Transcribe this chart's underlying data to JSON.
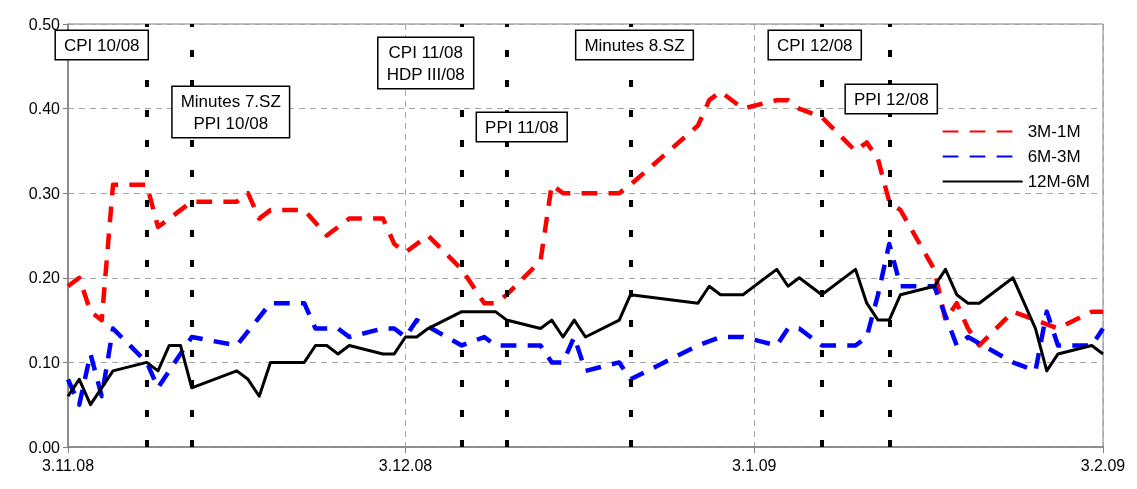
{
  "chart_data": {
    "type": "line",
    "xlim": [
      "2008-11-03",
      "2009-02-03"
    ],
    "xticks": [
      {
        "value": "2008-11-03",
        "label": "3.11.08"
      },
      {
        "value": "2008-12-03",
        "label": "3.12.08"
      },
      {
        "value": "2009-01-03",
        "label": "3.1.09"
      },
      {
        "value": "2009-02-03",
        "label": "3.2.09"
      }
    ],
    "ylim": [
      0,
      0.5
    ],
    "yticks": [
      {
        "value": 0,
        "label": "0.00"
      },
      {
        "value": 0.1,
        "label": "0.10"
      },
      {
        "value": 0.2,
        "label": "0.20"
      },
      {
        "value": 0.3,
        "label": "0.30"
      },
      {
        "value": 0.4,
        "label": "0.40"
      },
      {
        "value": 0.5,
        "label": "0.50"
      }
    ],
    "grid": true,
    "legend": "top right",
    "marker": "none",
    "series": [
      {
        "name": "3M-1M",
        "color": "#ff0000",
        "line_style": "dashed",
        "x": [
          "2008-11-03",
          "2008-11-04",
          "2008-11-05",
          "2008-11-06",
          "2008-11-07",
          "2008-11-10",
          "2008-11-11",
          "2008-11-14",
          "2008-11-18",
          "2008-11-19",
          "2008-11-20",
          "2008-11-21",
          "2008-11-24",
          "2008-11-26",
          "2008-11-27",
          "2008-11-28",
          "2008-12-01",
          "2008-12-02",
          "2008-12-03",
          "2008-12-05",
          "2008-12-08",
          "2008-12-10",
          "2008-12-11",
          "2008-12-12",
          "2008-12-15",
          "2008-12-16",
          "2008-12-17",
          "2008-12-18",
          "2008-12-19",
          "2008-12-22",
          "2008-12-23",
          "2008-12-29",
          "2008-12-30",
          "2008-12-31",
          "2009-01-02",
          "2009-01-05",
          "2009-01-06",
          "2009-01-07",
          "2009-01-09",
          "2009-01-12",
          "2009-01-13",
          "2009-01-14",
          "2009-01-15",
          "2009-01-16",
          "2009-01-19",
          "2009-01-20",
          "2009-01-21",
          "2009-01-22",
          "2009-01-23",
          "2009-01-26",
          "2009-01-28",
          "2009-01-30",
          "2009-02-02",
          "2009-02-03"
        ],
        "values": [
          0.19,
          0.2,
          0.16,
          0.15,
          0.31,
          0.31,
          0.26,
          0.29,
          0.29,
          0.3,
          0.27,
          0.28,
          0.28,
          0.25,
          0.26,
          0.27,
          0.27,
          0.24,
          0.23,
          0.25,
          0.21,
          0.17,
          0.17,
          0.18,
          0.22,
          0.31,
          0.3,
          0.3,
          0.3,
          0.3,
          0.31,
          0.38,
          0.41,
          0.42,
          0.4,
          0.41,
          0.41,
          0.4,
          0.39,
          0.35,
          0.36,
          0.34,
          0.29,
          0.28,
          0.21,
          0.15,
          0.17,
          0.14,
          0.12,
          0.16,
          0.15,
          0.14,
          0.16,
          0.16
        ]
      },
      {
        "name": "6M-3M",
        "color": "#0000ff",
        "line_style": "dashed",
        "x": [
          "2008-11-03",
          "2008-11-04",
          "2008-11-05",
          "2008-11-06",
          "2008-11-07",
          "2008-11-10",
          "2008-11-11",
          "2008-11-14",
          "2008-11-18",
          "2008-11-21",
          "2008-11-24",
          "2008-11-25",
          "2008-11-26",
          "2008-11-27",
          "2008-11-28",
          "2008-12-01",
          "2008-12-02",
          "2008-12-03",
          "2008-12-04",
          "2008-12-08",
          "2008-12-10",
          "2008-12-11",
          "2008-12-15",
          "2008-12-16",
          "2008-12-17",
          "2008-12-18",
          "2008-12-19",
          "2008-12-22",
          "2008-12-23",
          "2008-12-29",
          "2008-12-31",
          "2009-01-02",
          "2009-01-05",
          "2009-01-06",
          "2009-01-07",
          "2009-01-09",
          "2009-01-12",
          "2009-01-13",
          "2009-01-14",
          "2009-01-15",
          "2009-01-16",
          "2009-01-19",
          "2009-01-21",
          "2009-01-22",
          "2009-01-26",
          "2009-01-28",
          "2009-01-29",
          "2009-01-30",
          "2009-02-02",
          "2009-02-03"
        ],
        "values": [
          0.08,
          0.05,
          0.11,
          0.06,
          0.14,
          0.1,
          0.07,
          0.13,
          0.12,
          0.17,
          0.17,
          0.14,
          0.14,
          0.14,
          0.13,
          0.14,
          0.14,
          0.13,
          0.15,
          0.12,
          0.13,
          0.12,
          0.12,
          0.1,
          0.1,
          0.13,
          0.09,
          0.1,
          0.08,
          0.12,
          0.13,
          0.13,
          0.12,
          0.14,
          0.14,
          0.12,
          0.12,
          0.13,
          0.18,
          0.24,
          0.19,
          0.19,
          0.12,
          0.13,
          0.1,
          0.09,
          0.16,
          0.12,
          0.12,
          0.14
        ]
      },
      {
        "name": "12M-6M",
        "color": "#000000",
        "line_style": "solid",
        "x": [
          "2008-11-03",
          "2008-11-04",
          "2008-11-05",
          "2008-11-07",
          "2008-11-10",
          "2008-11-11",
          "2008-11-12",
          "2008-11-13",
          "2008-11-14",
          "2008-11-18",
          "2008-11-19",
          "2008-11-20",
          "2008-11-21",
          "2008-11-24",
          "2008-11-25",
          "2008-11-26",
          "2008-11-27",
          "2008-11-28",
          "2008-12-01",
          "2008-12-02",
          "2008-12-03",
          "2008-12-04",
          "2008-12-05",
          "2008-12-08",
          "2008-12-11",
          "2008-12-12",
          "2008-12-15",
          "2008-12-16",
          "2008-12-17",
          "2008-12-18",
          "2008-12-19",
          "2008-12-22",
          "2008-12-23",
          "2008-12-29",
          "2008-12-30",
          "2008-12-31",
          "2009-01-02",
          "2009-01-05",
          "2009-01-06",
          "2009-01-07",
          "2009-01-09",
          "2009-01-12",
          "2009-01-13",
          "2009-01-14",
          "2009-01-15",
          "2009-01-16",
          "2009-01-19",
          "2009-01-20",
          "2009-01-21",
          "2009-01-22",
          "2009-01-23",
          "2009-01-26",
          "2009-01-28",
          "2009-01-29",
          "2009-01-30",
          "2009-02-02",
          "2009-02-03"
        ],
        "values": [
          0.06,
          0.08,
          0.05,
          0.09,
          0.1,
          0.09,
          0.12,
          0.12,
          0.07,
          0.09,
          0.08,
          0.06,
          0.1,
          0.1,
          0.12,
          0.12,
          0.11,
          0.12,
          0.11,
          0.11,
          0.13,
          0.13,
          0.14,
          0.16,
          0.16,
          0.15,
          0.14,
          0.15,
          0.13,
          0.15,
          0.13,
          0.15,
          0.18,
          0.17,
          0.19,
          0.18,
          0.18,
          0.21,
          0.19,
          0.2,
          0.18,
          0.21,
          0.17,
          0.15,
          0.15,
          0.18,
          0.19,
          0.21,
          0.18,
          0.17,
          0.17,
          0.2,
          0.14,
          0.09,
          0.11,
          0.12,
          0.11
        ]
      }
    ],
    "ref_lines": [
      {
        "axis": "x",
        "value": "2008-11-10",
        "label": "CPI 10/08",
        "color": "#000000",
        "line_style": "dotted"
      },
      {
        "axis": "x",
        "value": "2008-11-14",
        "label": "Minutes 7.SZ\nPPI 10/08",
        "color": "#000000",
        "line_style": "dotted"
      },
      {
        "axis": "x",
        "value": "2008-12-08",
        "label": "CPI 11/08\nHDP III/08",
        "color": "#000000",
        "line_style": "dotted"
      },
      {
        "axis": "x",
        "value": "2008-12-12",
        "label": "PPI 11/08",
        "color": "#000000",
        "line_style": "dotted"
      },
      {
        "axis": "x",
        "value": "2008-12-23",
        "label": "Minutes 8.SZ",
        "color": "#000000",
        "line_style": "dotted"
      },
      {
        "axis": "x",
        "value": "2009-01-09",
        "label": "CPI 12/08",
        "color": "#000000",
        "line_style": "dotted"
      },
      {
        "axis": "x",
        "value": "2009-01-15",
        "label": "PPI 12/08",
        "color": "#000000",
        "line_style": "dotted"
      }
    ]
  }
}
